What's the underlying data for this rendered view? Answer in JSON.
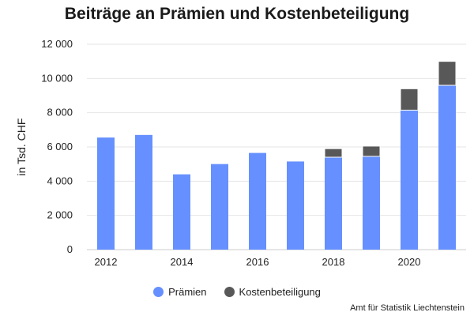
{
  "chart_data": {
    "type": "bar",
    "stacked": true,
    "title": "Beiträge an Prämien und Kostenbeteiligung",
    "ylabel": "in Tsd. CHF",
    "xlabel": "",
    "categories": [
      "2012",
      "2013",
      "2014",
      "2015",
      "2016",
      "2017",
      "2018",
      "2019",
      "2020",
      "2021"
    ],
    "x_tick_labels": [
      "2012",
      "2014",
      "2016",
      "2018",
      "2020"
    ],
    "y_ticks": [
      0,
      2000,
      4000,
      6000,
      8000,
      10000,
      12000
    ],
    "y_tick_labels": [
      "0",
      "2 000",
      "4 000",
      "6 000",
      "8 000",
      "10 000",
      "12 000"
    ],
    "ylim": [
      0,
      12000
    ],
    "grid": true,
    "legend_position": "bottom",
    "series": [
      {
        "name": "Prämien",
        "color": "#6690ff",
        "values": [
          6550,
          6700,
          4400,
          5000,
          5650,
          5150,
          5400,
          5450,
          8150,
          9600
        ]
      },
      {
        "name": "Kostenbeteiligung",
        "color": "#585858",
        "values": [
          0,
          0,
          0,
          0,
          0,
          0,
          500,
          600,
          1250,
          1400
        ]
      }
    ],
    "source": "Amt für Statistik Liechtenstein"
  }
}
